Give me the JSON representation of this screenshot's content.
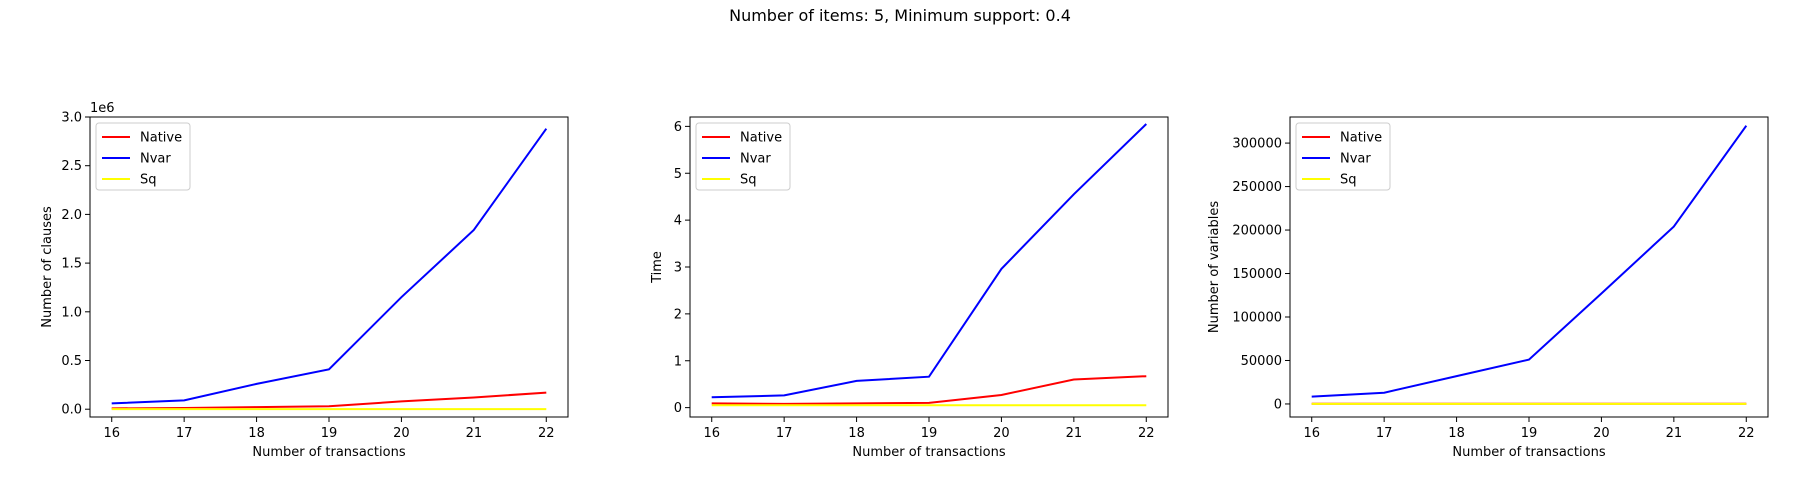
{
  "figure": {
    "suptitle": "Number of items: 5, Minimum support: 0.4"
  },
  "chart_data": [
    {
      "type": "line",
      "xlabel": "Number of transactions",
      "ylabel": "Number of clauses",
      "offset_text": "1e6",
      "scale": 1000000,
      "x": [
        16,
        17,
        18,
        19,
        20,
        21,
        22
      ],
      "xticks": [
        16,
        17,
        18,
        19,
        20,
        21,
        22
      ],
      "ylim": [
        -80000,
        3000000
      ],
      "yticks": [
        0,
        500000,
        1000000,
        1500000,
        2000000,
        2500000,
        3000000
      ],
      "ytick_labels": [
        "0.0",
        "0.5",
        "1.0",
        "1.5",
        "2.0",
        "2.5",
        "3.0"
      ],
      "legend_position": "upper left",
      "series": [
        {
          "name": "Native",
          "color": "#ff0000",
          "values": [
            8000,
            12000,
            22000,
            30000,
            80000,
            120000,
            170000
          ]
        },
        {
          "name": "Nvar",
          "color": "#0000ff",
          "values": [
            60000,
            90000,
            260000,
            410000,
            1150000,
            1840000,
            2880000
          ]
        },
        {
          "name": "Sq",
          "color": "#ffff00",
          "values": [
            1000,
            1100,
            1200,
            1300,
            1400,
            1500,
            1600
          ]
        }
      ]
    },
    {
      "type": "line",
      "xlabel": "Number of transactions",
      "ylabel": "Time",
      "offset_text": "",
      "scale": 1,
      "x": [
        16,
        17,
        18,
        19,
        20,
        21,
        22
      ],
      "xticks": [
        16,
        17,
        18,
        19,
        20,
        21,
        22
      ],
      "ylim": [
        -0.2,
        6.2
      ],
      "yticks": [
        0,
        1,
        2,
        3,
        4,
        5,
        6
      ],
      "ytick_labels": [
        "0",
        "1",
        "2",
        "3",
        "4",
        "5",
        "6"
      ],
      "legend_position": "upper left",
      "series": [
        {
          "name": "Native",
          "color": "#ff0000",
          "values": [
            0.09,
            0.08,
            0.09,
            0.1,
            0.27,
            0.6,
            0.67
          ]
        },
        {
          "name": "Nvar",
          "color": "#0000ff",
          "values": [
            0.22,
            0.26,
            0.57,
            0.66,
            2.96,
            4.55,
            6.05
          ]
        },
        {
          "name": "Sq",
          "color": "#ffff00",
          "values": [
            0.05,
            0.05,
            0.05,
            0.05,
            0.05,
            0.05,
            0.05
          ]
        }
      ]
    },
    {
      "type": "line",
      "xlabel": "Number of transactions",
      "ylabel": "Number of variables",
      "offset_text": "",
      "scale": 1,
      "x": [
        16,
        17,
        18,
        19,
        20,
        21,
        22
      ],
      "xticks": [
        16,
        17,
        18,
        19,
        20,
        21,
        22
      ],
      "ylim": [
        -15000,
        330000
      ],
      "yticks": [
        0,
        50000,
        100000,
        150000,
        200000,
        250000,
        300000
      ],
      "ytick_labels": [
        "0",
        "50000",
        "100000",
        "150000",
        "200000",
        "250000",
        "300000"
      ],
      "legend_position": "upper left",
      "series": [
        {
          "name": "Native",
          "color": "#ff0000",
          "values": [
            150,
            170,
            190,
            210,
            230,
            250,
            270
          ]
        },
        {
          "name": "Nvar",
          "color": "#0000ff",
          "values": [
            8500,
            13000,
            32000,
            51000,
            127000,
            204000,
            320000
          ]
        },
        {
          "name": "Sq",
          "color": "#ffff00",
          "values": [
            60,
            64,
            68,
            72,
            76,
            80,
            84
          ]
        }
      ]
    }
  ]
}
